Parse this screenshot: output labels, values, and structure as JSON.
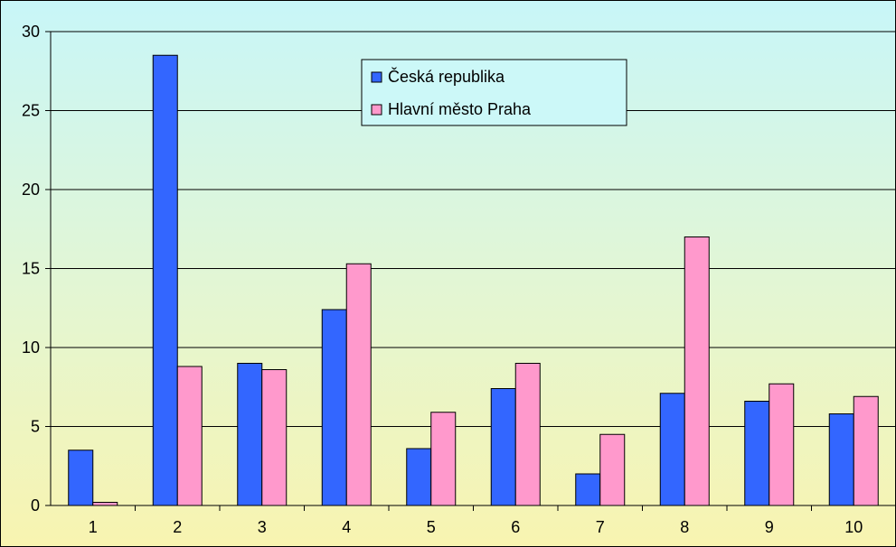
{
  "chart_data": {
    "type": "bar",
    "title": "",
    "xlabel": "",
    "ylabel": "",
    "categories": [
      "1",
      "2",
      "3",
      "4",
      "5",
      "6",
      "7",
      "8",
      "9",
      "10"
    ],
    "ylim": [
      0,
      30
    ],
    "yticks": [
      0,
      5,
      10,
      15,
      20,
      25,
      30
    ],
    "grid": true,
    "legend_position": "top-center",
    "series": [
      {
        "name": "Česká republika",
        "color": "#3366ff",
        "values": [
          3.5,
          28.5,
          9.0,
          12.4,
          3.6,
          7.4,
          2.0,
          7.1,
          6.6,
          5.8
        ]
      },
      {
        "name": "Hlavní město Praha",
        "color": "#ff99cc",
        "values": [
          0.2,
          8.8,
          8.6,
          15.3,
          5.9,
          9.0,
          4.5,
          17.0,
          7.7,
          6.9
        ]
      }
    ]
  }
}
